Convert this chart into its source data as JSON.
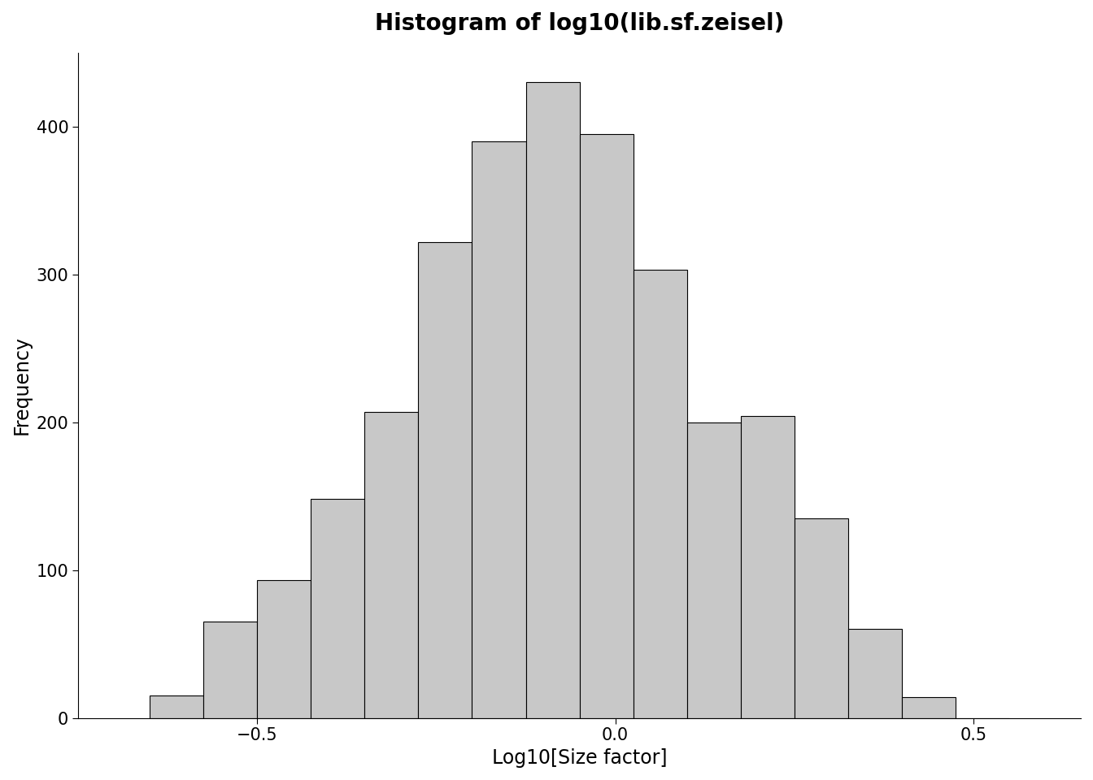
{
  "title": "Histogram of log10(lib.sf.zeisel)",
  "xlabel": "Log10[Size factor]",
  "ylabel": "Frequency",
  "bar_color": "#c8c8c8",
  "bar_edge_color": "#000000",
  "background_color": "#ffffff",
  "bin_edges": [
    -0.65,
    -0.575,
    -0.5,
    -0.425,
    -0.35,
    -0.275,
    -0.2,
    -0.125,
    -0.05,
    0.025,
    0.1,
    0.175,
    0.25,
    0.325,
    0.4,
    0.475,
    0.55
  ],
  "frequencies": [
    15,
    65,
    93,
    148,
    207,
    322,
    390,
    430,
    395,
    303,
    200,
    204,
    135,
    60,
    14,
    0
  ],
  "xlim": [
    -0.75,
    0.65
  ],
  "ylim": [
    0,
    450
  ],
  "yticks": [
    0,
    100,
    200,
    300,
    400
  ],
  "xticks": [
    -0.5,
    0.0,
    0.5
  ],
  "title_fontsize": 20,
  "axis_label_fontsize": 17,
  "tick_fontsize": 15
}
